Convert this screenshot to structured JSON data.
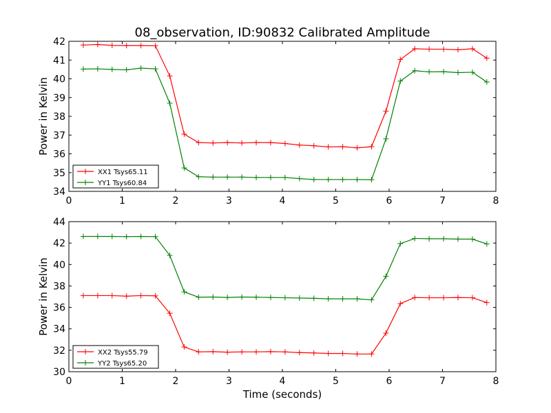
{
  "figure": {
    "title": "08_observation, ID:90832 Calibrated Amplitude"
  },
  "chart_data": [
    {
      "type": "line",
      "xlabel": "",
      "ylabel": "Power in Kelvin",
      "xlim": [
        0,
        8
      ],
      "ylim": [
        34,
        42
      ],
      "xticks": [
        "0",
        "1",
        "2",
        "3",
        "4",
        "5",
        "6",
        "7",
        "8"
      ],
      "yticks": [
        "34",
        "35",
        "36",
        "37",
        "38",
        "39",
        "40",
        "41",
        "42"
      ],
      "legend_position": "lower-left",
      "grid": false,
      "x": [
        0.27,
        0.54,
        0.81,
        1.08,
        1.35,
        1.62,
        1.89,
        2.16,
        2.43,
        2.7,
        2.97,
        3.24,
        3.51,
        3.78,
        4.05,
        4.32,
        4.59,
        4.86,
        5.13,
        5.4,
        5.67,
        5.94,
        6.21,
        6.48,
        6.75,
        7.02,
        7.29,
        7.56,
        7.83
      ],
      "series": [
        {
          "name": "XX1 Tsys65.11",
          "color": "#ff0000",
          "values": [
            41.8,
            41.83,
            41.78,
            41.77,
            41.77,
            41.76,
            40.15,
            37.05,
            36.6,
            36.58,
            36.6,
            36.58,
            36.6,
            36.6,
            36.55,
            36.47,
            36.43,
            36.37,
            36.38,
            36.32,
            36.38,
            38.28,
            41.03,
            41.6,
            41.58,
            41.58,
            41.55,
            41.6,
            41.1
          ]
        },
        {
          "name": "YY1 Tsys60.84",
          "color": "#008000",
          "values": [
            40.52,
            40.53,
            40.5,
            40.48,
            40.57,
            40.53,
            38.7,
            35.25,
            34.78,
            34.76,
            34.76,
            34.76,
            34.74,
            34.74,
            34.74,
            34.68,
            34.63,
            34.63,
            34.63,
            34.63,
            34.62,
            36.8,
            39.88,
            40.43,
            40.37,
            40.38,
            40.33,
            40.35,
            39.83
          ]
        }
      ]
    },
    {
      "type": "line",
      "xlabel": "Time (seconds)",
      "ylabel": "Power in Kelvin",
      "xlim": [
        0,
        8
      ],
      "ylim": [
        30,
        44
      ],
      "xticks": [
        "0",
        "1",
        "2",
        "3",
        "4",
        "5",
        "6",
        "7",
        "8"
      ],
      "yticks": [
        "30",
        "32",
        "34",
        "36",
        "38",
        "40",
        "42",
        "44"
      ],
      "legend_position": "lower-left",
      "grid": false,
      "x": [
        0.27,
        0.54,
        0.81,
        1.08,
        1.35,
        1.62,
        1.89,
        2.16,
        2.43,
        2.7,
        2.97,
        3.24,
        3.51,
        3.78,
        4.05,
        4.32,
        4.59,
        4.86,
        5.13,
        5.4,
        5.67,
        5.94,
        6.21,
        6.48,
        6.75,
        7.02,
        7.29,
        7.56,
        7.83
      ],
      "series": [
        {
          "name": "XX2 Tsys55.79",
          "color": "#ff0000",
          "values": [
            37.1,
            37.1,
            37.1,
            37.05,
            37.1,
            37.08,
            35.45,
            32.3,
            31.85,
            31.87,
            31.82,
            31.85,
            31.85,
            31.87,
            31.85,
            31.78,
            31.75,
            31.7,
            31.7,
            31.65,
            31.65,
            33.6,
            36.35,
            36.92,
            36.9,
            36.9,
            36.92,
            36.9,
            36.45
          ]
        },
        {
          "name": "YY2 Tsys65.20",
          "color": "#008000",
          "values": [
            42.62,
            42.62,
            42.62,
            42.6,
            42.62,
            42.6,
            40.85,
            37.45,
            36.95,
            36.97,
            36.93,
            36.97,
            36.95,
            36.93,
            36.9,
            36.87,
            36.85,
            36.8,
            36.8,
            36.8,
            36.7,
            38.9,
            41.95,
            42.43,
            42.4,
            42.4,
            42.37,
            42.37,
            41.92
          ]
        }
      ]
    }
  ]
}
